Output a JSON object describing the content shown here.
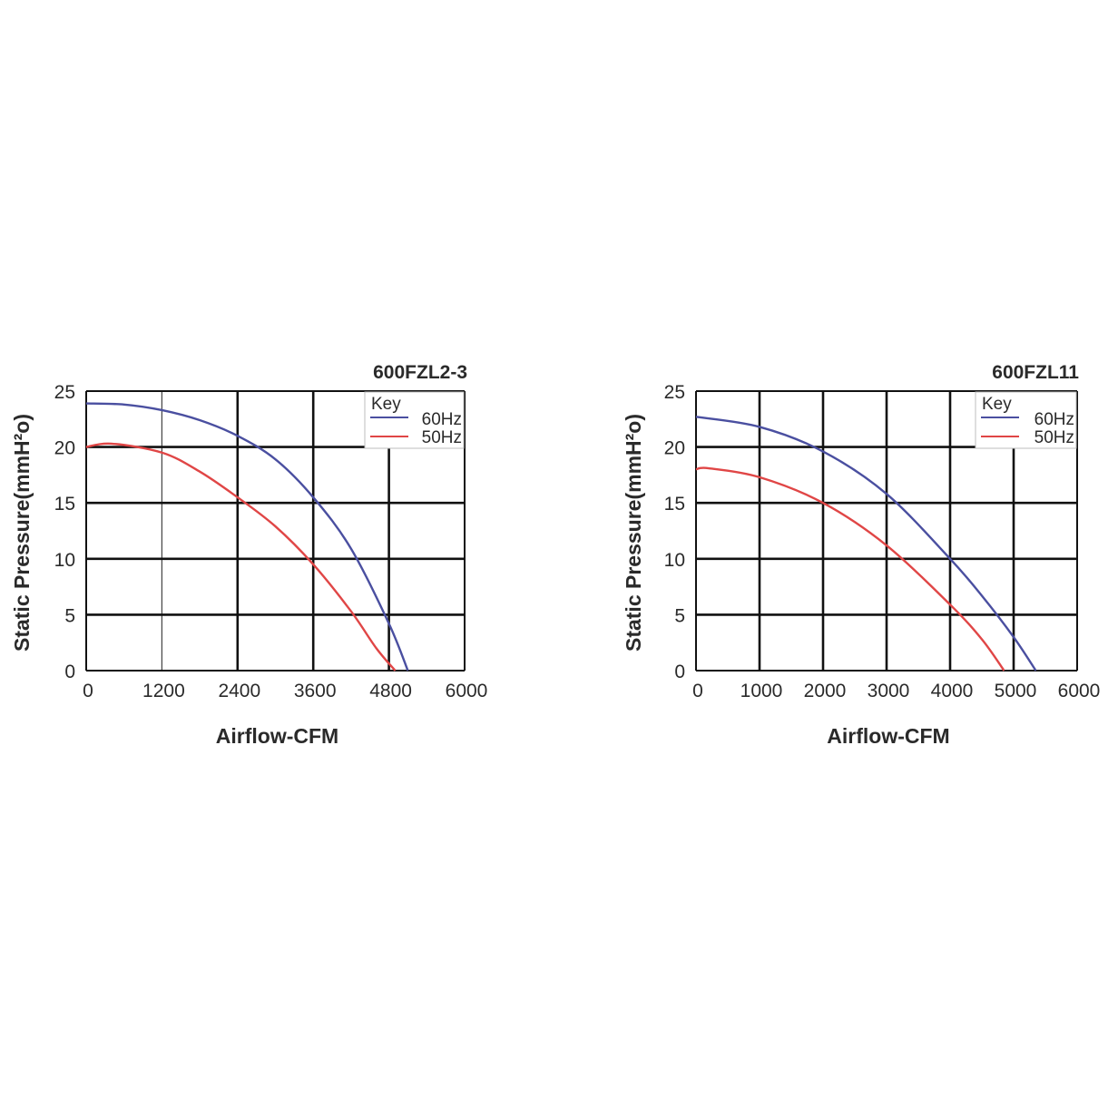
{
  "colors": {
    "series_60hz": "#4a4fa0",
    "series_50hz": "#e04646",
    "grid_major": "#111111",
    "grid_minor": "#444444"
  },
  "chart_data": [
    {
      "type": "line",
      "title": "600FZL2-3",
      "xlabel": "Airflow-CFM",
      "ylabel": "Static Pressure(mmH²o)",
      "xlim": [
        0,
        6000
      ],
      "ylim": [
        0,
        25
      ],
      "xticks": [
        "0",
        "1200",
        "2400",
        "3600",
        "4800",
        "6000"
      ],
      "yticks": [
        "0",
        "5",
        "10",
        "15",
        "20",
        "25"
      ],
      "grid": true,
      "legend": {
        "title": "Key",
        "placement": "top-right"
      },
      "series": [
        {
          "name": "60Hz",
          "color": "#4a4fa0",
          "x": [
            0,
            600,
            1200,
            1800,
            2400,
            3000,
            3600,
            4200,
            4800,
            5100
          ],
          "y": [
            23.9,
            23.8,
            23.3,
            22.4,
            21.0,
            18.9,
            15.5,
            10.9,
            4.2,
            0
          ]
        },
        {
          "name": "50Hz",
          "color": "#e04646",
          "x": [
            0,
            400,
            1200,
            1800,
            2400,
            3000,
            3600,
            4200,
            4600,
            4900
          ],
          "y": [
            20.0,
            20.3,
            19.5,
            17.8,
            15.5,
            12.9,
            9.5,
            5.3,
            2.0,
            0
          ]
        }
      ]
    },
    {
      "type": "line",
      "title": "600FZL11",
      "xlabel": "Airflow-CFM",
      "ylabel": "Static Pressure(mmH²o)",
      "xlim": [
        0,
        6000
      ],
      "ylim": [
        0,
        25
      ],
      "xticks": [
        "0",
        "1000",
        "2000",
        "3000",
        "4000",
        "5000",
        "6000"
      ],
      "yticks": [
        "0",
        "5",
        "10",
        "15",
        "20",
        "25"
      ],
      "grid": true,
      "legend": {
        "title": "Key",
        "placement": "top-right"
      },
      "series": [
        {
          "name": "60Hz",
          "color": "#4a4fa0",
          "x": [
            0,
            1000,
            2000,
            3000,
            4000,
            4500,
            5000,
            5350
          ],
          "y": [
            22.7,
            21.8,
            19.6,
            15.8,
            10.0,
            6.7,
            3.0,
            0
          ]
        },
        {
          "name": "50Hz",
          "color": "#e04646",
          "x": [
            0,
            200,
            1000,
            2000,
            3000,
            4000,
            4500,
            4850
          ],
          "y": [
            18.0,
            18.1,
            17.3,
            15.0,
            11.2,
            5.9,
            2.8,
            0
          ]
        }
      ]
    }
  ]
}
